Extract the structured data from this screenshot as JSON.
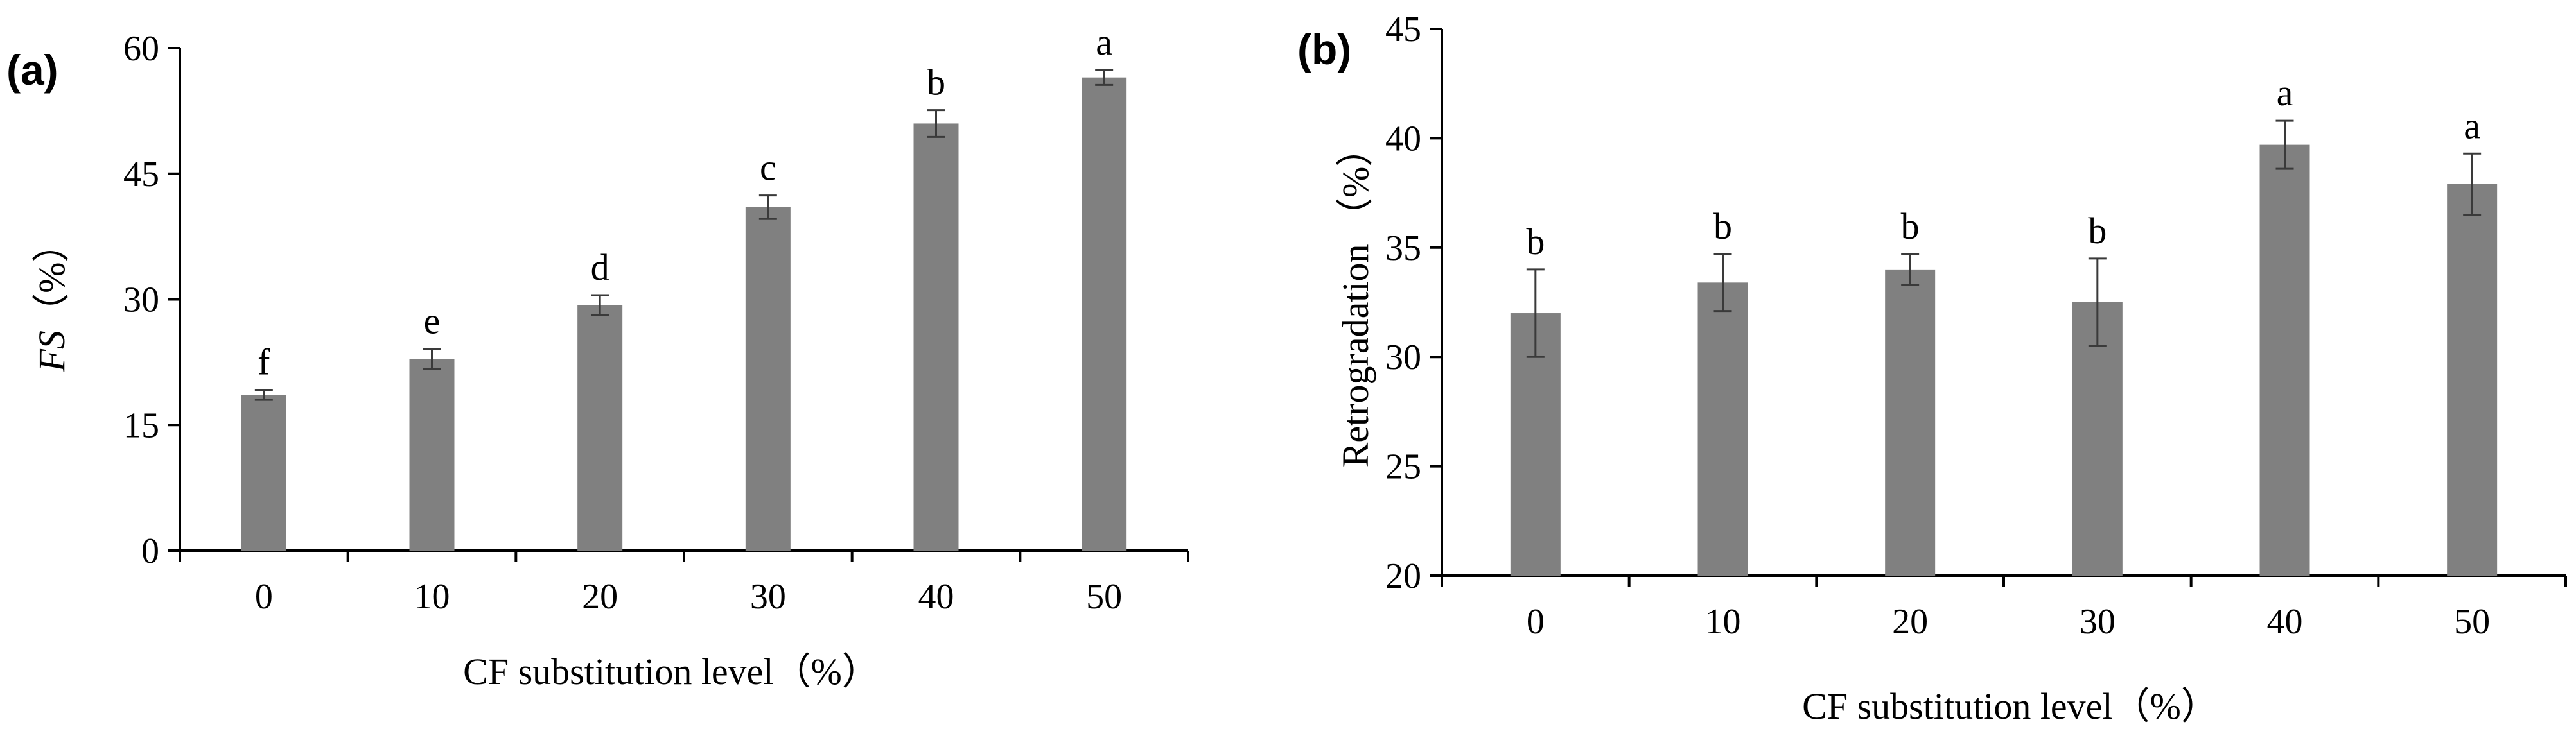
{
  "chart_data": [
    {
      "type": "bar",
      "panel_label": "(a)",
      "categories": [
        "0",
        "10",
        "20",
        "30",
        "40",
        "50"
      ],
      "values": [
        18.6,
        22.9,
        29.3,
        41.0,
        51.0,
        56.5
      ],
      "errors": [
        0.6,
        1.2,
        1.2,
        1.4,
        1.6,
        0.9
      ],
      "significance": [
        "f",
        "e",
        "d",
        "c",
        "b",
        "a"
      ],
      "yticks": [
        "0",
        "15",
        "30",
        "45",
        "60"
      ],
      "ylim": [
        0,
        60
      ],
      "ylabel_italic": "FS",
      "ylabel_unit": "（%）",
      "xlabel": "CF substitution level（%）",
      "bar_color": "#808080"
    },
    {
      "type": "bar",
      "panel_label": "(b)",
      "categories": [
        "0",
        "10",
        "20",
        "30",
        "40",
        "50"
      ],
      "values": [
        32.0,
        33.4,
        34.0,
        32.5,
        39.7,
        37.9
      ],
      "errors": [
        2.0,
        1.3,
        0.7,
        2.0,
        1.1,
        1.4
      ],
      "significance": [
        "b",
        "b",
        "b",
        "b",
        "a",
        "a"
      ],
      "yticks": [
        "20",
        "25",
        "30",
        "35",
        "40",
        "45"
      ],
      "ylim": [
        20,
        45
      ],
      "ylabel_italic": "",
      "ylabel_unit": "Retrogradation （%）",
      "xlabel": "CF substitution level（%）",
      "bar_color": "#808080"
    }
  ]
}
